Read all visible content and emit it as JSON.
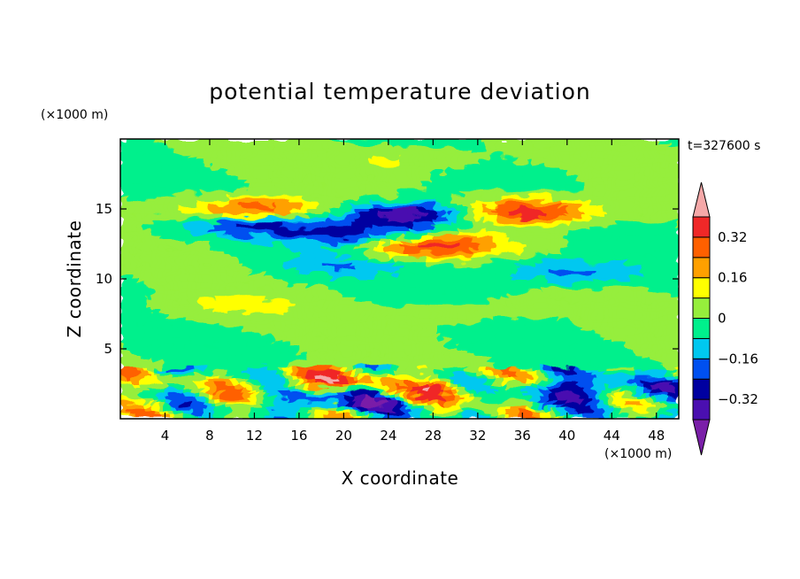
{
  "chart_data": {
    "type": "heatmap",
    "title": "potential temperature deviation",
    "xlabel": "X coordinate",
    "ylabel": "Z coordinate",
    "x_unit": "(×1000 m)",
    "y_unit": "(×1000 m)",
    "time_label": "t=327600 s",
    "xlim": [
      0,
      50
    ],
    "ylim": [
      0,
      20
    ],
    "x_ticks": [
      4,
      8,
      12,
      16,
      20,
      24,
      28,
      32,
      36,
      40,
      44,
      48
    ],
    "y_ticks": [
      5,
      10,
      15
    ],
    "colorbar": {
      "levels": [
        -0.4,
        -0.32,
        -0.24,
        -0.16,
        -0.08,
        0,
        0.08,
        0.16,
        0.24,
        0.32,
        0.4
      ],
      "labels": [
        "0.32",
        "0.16",
        "0",
        "−0.16",
        "−0.32"
      ],
      "label_values": [
        0.32,
        0.16,
        0,
        -0.16,
        -0.32
      ],
      "colors": [
        "#7a1fa8",
        "#4a0fb0",
        "#0000a0",
        "#0050f0",
        "#00c8f0",
        "#00f08c",
        "#96ee3c",
        "#ffff00",
        "#ffa000",
        "#ff6000",
        "#f02828",
        "#f5a8a8"
      ]
    },
    "features": [
      {
        "x": 12,
        "z": 14.8,
        "value": 0.42
      },
      {
        "x": 36,
        "z": 14.8,
        "value": 0.42
      },
      {
        "x": 27,
        "z": 12.4,
        "value": 0.42
      },
      {
        "x": 12,
        "z": 14.0,
        "value": -0.36
      },
      {
        "x": 26,
        "z": 14.6,
        "value": -0.42
      },
      {
        "x": 22,
        "z": 13.0,
        "value": -0.3
      },
      {
        "x": 40,
        "z": 10.5,
        "value": -0.2
      },
      {
        "x": 20,
        "z": 11.0,
        "value": -0.15
      },
      {
        "x": 25,
        "z": 18.5,
        "value": 0.1
      },
      {
        "x": 10,
        "z": 8.0,
        "value": 0.1
      },
      {
        "x": 30,
        "z": 7.5,
        "value": 0.05
      },
      {
        "x": 18,
        "z": 2.5,
        "value": 0.3
      },
      {
        "x": 30,
        "z": 2.0,
        "value": 0.2
      },
      {
        "x": 40,
        "z": 2.0,
        "value": -0.3
      },
      {
        "x": 20,
        "z": 1.5,
        "value": -0.28
      }
    ]
  }
}
